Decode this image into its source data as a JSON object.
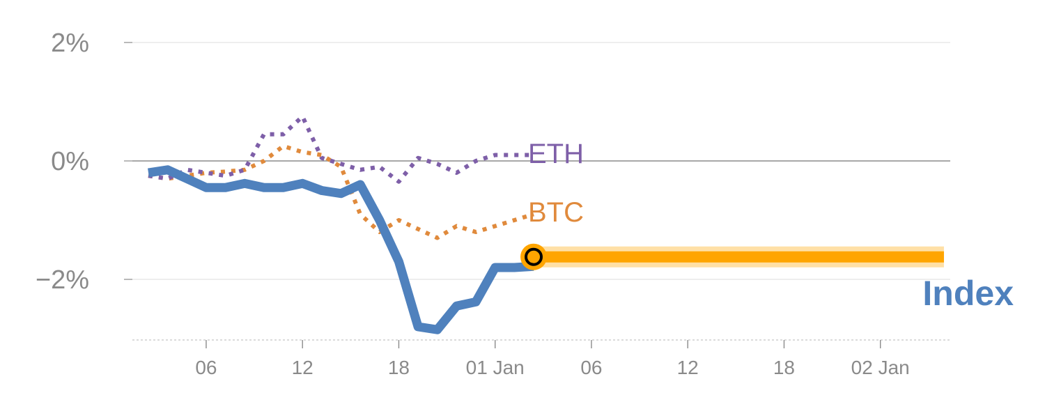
{
  "chart_data": {
    "type": "line",
    "y_unit": "%",
    "ylim": [
      -3.0,
      2.2
    ],
    "y_ticks": [
      {
        "value": 2,
        "label": "2%"
      },
      {
        "value": 0,
        "label": "0%"
      },
      {
        "value": -2,
        "label": "−2%"
      }
    ],
    "x_range": [
      0,
      42
    ],
    "x_ticks": [
      {
        "pos": 3,
        "label": "06"
      },
      {
        "pos": 8,
        "label": "12"
      },
      {
        "pos": 13,
        "label": "18"
      },
      {
        "pos": 18,
        "label": "01 Jan"
      },
      {
        "pos": 23,
        "label": "06"
      },
      {
        "pos": 28,
        "label": "12"
      },
      {
        "pos": 33,
        "label": "18"
      },
      {
        "pos": 38,
        "label": "02 Jan"
      }
    ],
    "grid": true,
    "series": [
      {
        "name": "Index",
        "color": "#4f81bd",
        "style": "solid",
        "label_style": "bold",
        "x": [
          0,
          1,
          2,
          3,
          4,
          5,
          6,
          7,
          8,
          9,
          10,
          11,
          12,
          13,
          14,
          15,
          16,
          17,
          18,
          19,
          20
        ],
        "values": [
          -0.2,
          -0.15,
          -0.3,
          -0.45,
          -0.45,
          -0.38,
          -0.45,
          -0.45,
          -0.38,
          -0.5,
          -0.55,
          -0.4,
          -1.0,
          -1.7,
          -2.8,
          -2.85,
          -2.45,
          -2.38,
          -1.8,
          -1.8,
          -1.78
        ]
      },
      {
        "name": "BTC",
        "color": "#e08a3c",
        "style": "dotted",
        "x": [
          0,
          1,
          2,
          3,
          4,
          5,
          6,
          7,
          8,
          9,
          10,
          11,
          12,
          13,
          14,
          15,
          16,
          17,
          18,
          19,
          20
        ],
        "values": [
          -0.25,
          -0.3,
          -0.25,
          -0.2,
          -0.18,
          -0.15,
          0.0,
          0.25,
          0.15,
          0.1,
          -0.1,
          -0.9,
          -1.2,
          -1.0,
          -1.15,
          -1.3,
          -1.1,
          -1.2,
          -1.1,
          -1.0,
          -0.9
        ]
      },
      {
        "name": "ETH",
        "color": "#7e5fa8",
        "style": "dotted",
        "x": [
          0,
          1,
          2,
          3,
          4,
          5,
          6,
          7,
          8,
          9,
          10,
          11,
          12,
          13,
          14,
          15,
          16,
          17,
          18,
          19,
          20
        ],
        "values": [
          -0.25,
          -0.3,
          -0.15,
          -0.2,
          -0.25,
          -0.15,
          0.45,
          0.45,
          0.75,
          0.05,
          -0.05,
          -0.15,
          -0.1,
          -0.35,
          0.05,
          -0.05,
          -0.2,
          0.0,
          0.1,
          0.1,
          0.1
        ]
      }
    ],
    "projection": {
      "color": "#ffa500",
      "start_x": 20,
      "end_x": 41.3,
      "value": -1.62
    },
    "marker": {
      "x": 20,
      "value": -1.62
    }
  }
}
